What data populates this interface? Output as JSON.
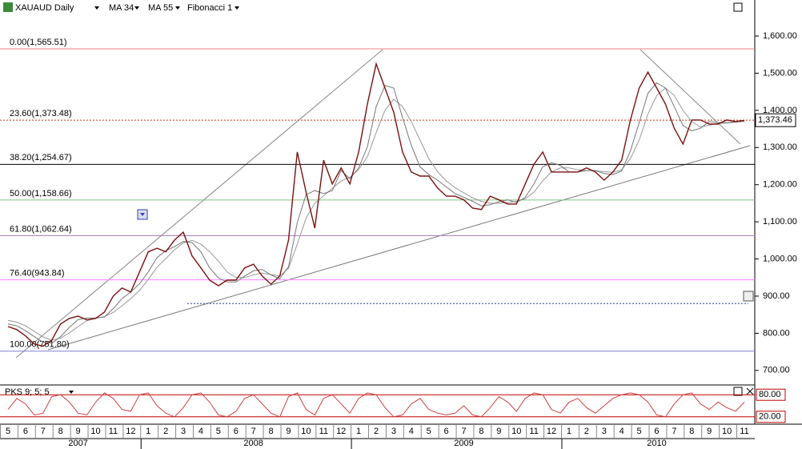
{
  "chart_data": [
    {
      "type": "line",
      "categories": [
        "5",
        null,
        "6",
        null,
        "7",
        null,
        "8",
        null,
        "9",
        null,
        "10",
        null,
        "11",
        null,
        "12",
        null,
        "1",
        null,
        "2",
        null,
        "3",
        null,
        "4",
        null,
        "5",
        null,
        "6",
        null,
        "7",
        null,
        "8",
        null,
        "9",
        null,
        "10",
        null,
        "11",
        null,
        "12",
        null,
        "1",
        null,
        "2",
        null,
        "3",
        null,
        "4",
        null,
        "5",
        null,
        "6",
        null,
        "7",
        null,
        "8",
        null,
        "9",
        null,
        "10",
        null,
        "11",
        null,
        "12",
        null,
        "1",
        null,
        "2",
        null,
        "3",
        null,
        "4",
        null,
        "5",
        null,
        "6",
        null,
        "7",
        null,
        "8",
        null,
        "9",
        null,
        "10",
        null,
        "11"
      ],
      "years": [
        "2007",
        "2008",
        "2009",
        "2010"
      ],
      "series": [
        {
          "name": "XAUAUD Daily",
          "color": "#7a1010",
          "values": [
            818,
            810,
            793,
            771,
            765,
            782,
            825,
            840,
            846,
            836,
            840,
            857,
            900,
            922,
            911,
            965,
            1019,
            1029,
            1019,
            1051,
            1072,
            1008,
            976,
            943,
            928,
            943,
            943,
            976,
            986,
            954,
            932,
            954,
            1051,
            1288,
            1180,
            1083,
            1266,
            1202,
            1245,
            1202,
            1288,
            1417,
            1525,
            1460,
            1395,
            1288,
            1234,
            1223,
            1223,
            1191,
            1169,
            1169,
            1159,
            1137,
            1133,
            1169,
            1159,
            1148,
            1148,
            1202,
            1255,
            1288,
            1234,
            1234,
            1234,
            1234,
            1245,
            1234,
            1212,
            1234,
            1266,
            1374,
            1460,
            1503,
            1460,
            1417,
            1352,
            1309,
            1374,
            1374,
            1363,
            1363,
            1374,
            1370,
            1373
          ]
        },
        {
          "name": "MA 34",
          "color": "#777777",
          "values": [
            825,
            820,
            807,
            791,
            776,
            773,
            791,
            816,
            837,
            841,
            841,
            844,
            866,
            893,
            911,
            933,
            965,
            1004,
            1022,
            1033,
            1047,
            1044,
            1019,
            976,
            949,
            938,
            938,
            954,
            968,
            972,
            957,
            947,
            979,
            1098,
            1173,
            1184,
            1176,
            1184,
            1238,
            1216,
            1245,
            1302,
            1410,
            1467,
            1460,
            1381,
            1306,
            1248,
            1227,
            1212,
            1194,
            1176,
            1166,
            1155,
            1143,
            1146,
            1154,
            1159,
            1152,
            1166,
            1202,
            1248,
            1259,
            1252,
            1234,
            1234,
            1238,
            1238,
            1230,
            1227,
            1237,
            1291,
            1367,
            1446,
            1474,
            1460,
            1410,
            1359,
            1345,
            1352,
            1370,
            1367,
            1367,
            1369,
            1372
          ]
        },
        {
          "name": "MA 55",
          "color": "#999999",
          "values": [
            835,
            830,
            820,
            805,
            790,
            781,
            787,
            801,
            818,
            834,
            840,
            845,
            856,
            874,
            893,
            915,
            945,
            978,
            1001,
            1025,
            1043,
            1050,
            1040,
            1020,
            994,
            965,
            950,
            950,
            957,
            962,
            958,
            954,
            975,
            1040,
            1110,
            1150,
            1170,
            1190,
            1210,
            1220,
            1240,
            1275,
            1340,
            1400,
            1430,
            1410,
            1370,
            1320,
            1270,
            1235,
            1210,
            1192,
            1178,
            1165,
            1155,
            1150,
            1150,
            1152,
            1155,
            1162,
            1180,
            1210,
            1235,
            1245,
            1245,
            1240,
            1238,
            1238,
            1235,
            1233,
            1240,
            1270,
            1320,
            1390,
            1440,
            1460,
            1440,
            1400,
            1370,
            1355,
            1360,
            1365,
            1366,
            1368,
            1370
          ]
        }
      ],
      "fibonacci": {
        "name": "Fibonacci 1",
        "levels": [
          {
            "label": "0.00(1,565.51)",
            "value": 1565.51,
            "color": "#f08080",
            "text_color": "#c00000"
          },
          {
            "label": "23.60(1,373.48)",
            "value": 1373.48,
            "color": "#d03020",
            "text_color": "#a08080",
            "dotted": true
          },
          {
            "label": "38.20(1,254.67)",
            "value": 1254.67,
            "color": "#000000",
            "text_color": "#000000"
          },
          {
            "label": "50.00(1,158.66)",
            "value": 1158.66,
            "color": "#80c080",
            "text_color": "#008000"
          },
          {
            "label": "61.80(1,062.64)",
            "value": 1062.64,
            "color": "#b080c0",
            "text_color": "#800080"
          },
          {
            "label": "76.40(943.84)",
            "value": 943.84,
            "color": "#ff80ff",
            "text_color": "#c000c0"
          },
          {
            "label": "100.00(751.80)",
            "value": 751.8,
            "color": "#8080d0",
            "text_color": "#000080"
          }
        ]
      },
      "hline": {
        "value": 880,
        "color": "#3040b0"
      },
      "last_price": {
        "value": 1373.46,
        "label": "1,373.46"
      },
      "ylim": [
        663,
        1697
      ],
      "yticks": [
        {
          "value": 700,
          "label": "700.00"
        },
        {
          "value": 800,
          "label": "800.00"
        },
        {
          "value": 900,
          "label": "900.00"
        },
        {
          "value": 1000,
          "label": "1,000.00"
        },
        {
          "value": 1100,
          "label": "1,100.00"
        },
        {
          "value": 1200,
          "label": "1,200.00"
        },
        {
          "value": 1300,
          "label": "1,300.00"
        },
        {
          "value": 1400,
          "label": "1,400.00"
        },
        {
          "value": 1500,
          "label": "1,500.00"
        },
        {
          "value": 1600,
          "label": "1,600.00"
        }
      ]
    },
    {
      "type": "line",
      "title": "PKS 9; 5; 5",
      "color": "#d04040",
      "values": [
        40,
        70,
        55,
        25,
        30,
        75,
        80,
        60,
        30,
        25,
        60,
        85,
        70,
        40,
        35,
        80,
        85,
        50,
        30,
        20,
        45,
        80,
        85,
        60,
        25,
        20,
        35,
        70,
        80,
        55,
        30,
        20,
        75,
        85,
        40,
        25,
        70,
        80,
        55,
        30,
        70,
        85,
        80,
        45,
        20,
        25,
        55,
        70,
        40,
        30,
        25,
        30,
        50,
        25,
        20,
        45,
        75,
        60,
        35,
        70,
        85,
        80,
        40,
        30,
        60,
        70,
        45,
        30,
        50,
        70,
        80,
        85,
        80,
        60,
        25,
        20,
        55,
        80,
        85,
        55,
        40,
        60,
        45,
        35,
        60
      ],
      "ylim": [
        0,
        100
      ],
      "levels": [
        {
          "value": 80,
          "label": "80.00"
        },
        {
          "value": 20,
          "label": "20.00"
        }
      ]
    }
  ]
}
